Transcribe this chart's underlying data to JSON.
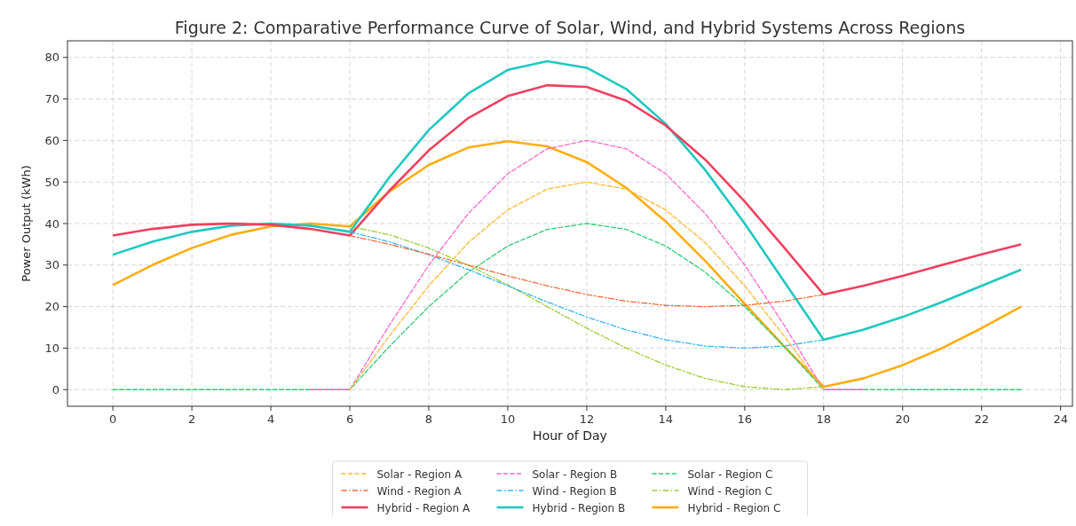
{
  "chart_data": {
    "type": "line",
    "title": "Figure 2: Comparative Performance Curve of Solar, Wind, and Hybrid Systems Across Regions",
    "xlabel": "Hour of Day",
    "ylabel": "Power Output (kWh)",
    "x": [
      0,
      1,
      2,
      3,
      4,
      5,
      6,
      7,
      8,
      9,
      10,
      11,
      12,
      13,
      14,
      15,
      16,
      17,
      18,
      19,
      20,
      21,
      22,
      23
    ],
    "xlim": [
      -1.15,
      24.3
    ],
    "xticks": [
      0,
      2,
      4,
      6,
      8,
      10,
      12,
      14,
      16,
      18,
      20,
      22,
      24
    ],
    "ylim": [
      -4,
      84
    ],
    "yticks": [
      0,
      10,
      20,
      30,
      40,
      50,
      60,
      70,
      80
    ],
    "grid": true,
    "legend": "bottom",
    "marker": "none",
    "series": [
      {
        "name": "Solar - Region A",
        "color": "#ffb833",
        "line_style": "dashed",
        "values": [
          null,
          null,
          null,
          null,
          null,
          null,
          0,
          12.9,
          25,
          35.4,
          43.3,
          48.3,
          50,
          48.3,
          43.3,
          35.4,
          25,
          12.9,
          0,
          null,
          null,
          null,
          null,
          null
        ]
      },
      {
        "name": "Wind - Region A",
        "color": "#f26b38",
        "line_style": "dashdot",
        "values": [
          null,
          null,
          null,
          null,
          null,
          null,
          37.1,
          35,
          32.6,
          30,
          27.4,
          25,
          22.9,
          21.3,
          20.3,
          20,
          20.3,
          21.3,
          22.9,
          null,
          null,
          null,
          null,
          null
        ]
      },
      {
        "name": "Hybrid - Region A",
        "color": "#ef4060",
        "line_style": "solid",
        "values": [
          37.1,
          38.7,
          39.7,
          40,
          39.7,
          38.7,
          37.1,
          47.9,
          57.6,
          65.4,
          70.7,
          73.3,
          72.9,
          69.6,
          63.6,
          55.4,
          45.3,
          34.2,
          22.9,
          25,
          27.4,
          30,
          32.6,
          35
        ]
      },
      {
        "name": "Solar - Region B",
        "color": "#ff66cc",
        "line_style": "dashed",
        "values": [
          null,
          null,
          null,
          null,
          null,
          0,
          0,
          15.5,
          30,
          42.4,
          52,
          58,
          60,
          58,
          52,
          42.4,
          30,
          15.5,
          0,
          0,
          null,
          null,
          null,
          null
        ]
      },
      {
        "name": "Wind - Region B",
        "color": "#33b5ff",
        "line_style": "dashdot",
        "values": [
          null,
          null,
          null,
          null,
          null,
          null,
          38,
          35.6,
          32.5,
          28.9,
          25,
          21.1,
          17.5,
          14.4,
          12,
          10.5,
          10,
          10.5,
          12,
          null,
          null,
          null,
          null,
          null
        ]
      },
      {
        "name": "Hybrid - Region B",
        "color": "#1fc8c0",
        "line_style": "solid",
        "values": [
          32.5,
          35.6,
          38,
          39.5,
          40,
          39.5,
          38,
          51.1,
          62.5,
          71.3,
          77,
          79.1,
          77.5,
          72.4,
          64,
          52.9,
          40,
          26,
          12,
          14.4,
          17.5,
          21.1,
          25,
          28.9
        ]
      },
      {
        "name": "Solar - Region C",
        "color": "#2ecc71",
        "line_style": "dashed",
        "values": [
          0,
          0,
          0,
          0,
          0,
          0,
          0,
          10.4,
          20,
          28.3,
          34.6,
          38.6,
          40,
          38.6,
          34.6,
          28.3,
          20,
          10.4,
          0,
          0,
          0,
          0,
          0,
          0
        ]
      },
      {
        "name": "Wind - Region C",
        "color": "#9acd32",
        "line_style": "dashdot",
        "values": [
          null,
          null,
          null,
          null,
          null,
          null,
          39.3,
          37.3,
          34.1,
          30,
          25.2,
          20,
          14.8,
          10,
          5.9,
          2.7,
          0.7,
          0,
          0.7,
          null,
          null,
          null,
          null,
          null
        ]
      },
      {
        "name": "Hybrid - Region C",
        "color": "#ffad0f",
        "line_style": "solid",
        "values": [
          25.2,
          30,
          34.1,
          37.3,
          39.3,
          40,
          39.3,
          47.7,
          54.1,
          58.3,
          59.8,
          58.6,
          54.8,
          48.6,
          40.5,
          31,
          20.7,
          10.4,
          0.7,
          2.7,
          5.9,
          10,
          14.8,
          20
        ]
      }
    ]
  }
}
